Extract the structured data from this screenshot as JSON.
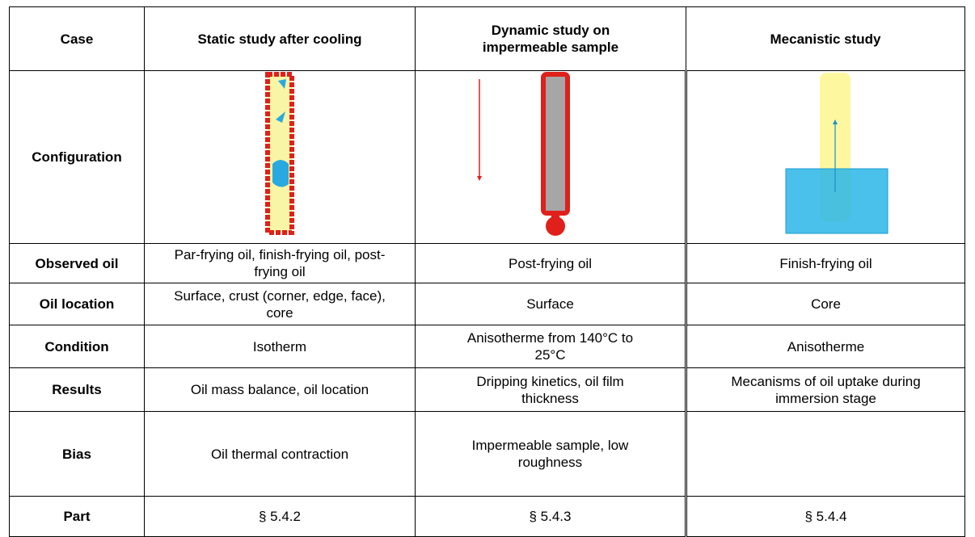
{
  "table": {
    "header": [
      "Case",
      "Static study after cooling",
      "Dynamic study on impermeable sample",
      "Mecanistic study"
    ],
    "rows": [
      [
        "Configuration"
      ],
      [
        "Observed oil",
        "Par-frying oil, finish-frying oil, post-frying oil",
        "Post-frying oil",
        "Finish-frying oil"
      ],
      [
        "Oil location",
        "Surface, crust (corner, edge, face), core",
        "Surface",
        "Core"
      ],
      [
        "Condition",
        "Isotherm",
        "Anisotherme from 140°C to 25°C",
        "Anisotherme"
      ],
      [
        "Results",
        "Oil mass balance, oil location",
        "Dripping kinetics, oil film thickness",
        "Mecanisms of oil uptake during immersion stage"
      ],
      [
        "Bias",
        "Oil thermal contraction",
        "Impermeable sample, low roughness"
      ],
      [
        "Part",
        "§ 5.4.2",
        "§ 5.4.3",
        "§ 5.4.4"
      ]
    ]
  }
}
